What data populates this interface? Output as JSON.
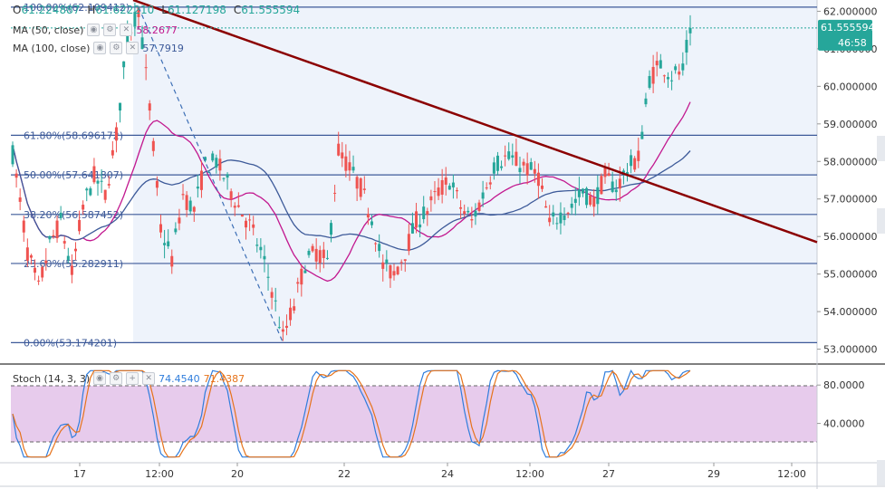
{
  "ohlc": {
    "open_label": "O",
    "open": "61.224887",
    "high_label": "H",
    "high": "61.622210",
    "low_label": "L",
    "low": "61.127198",
    "close_label": "C",
    "close": "61.555594"
  },
  "indicators": {
    "ma50_label": "MA (50, close)",
    "ma50_value": "58.2677",
    "ma50_color": "#c2188f",
    "ma100_label": "MA (100, close)",
    "ma100_value": "57.7919",
    "ma100_color": "#3d5a99"
  },
  "stoch": {
    "label": "Stoch (14, 3, 3)",
    "k_value": "74.4540",
    "k_color": "#2f7ddc",
    "d_value": "71.4387",
    "d_color": "#e6731b",
    "axis_ticks": [
      80,
      40
    ],
    "axis_tick_labels": [
      "80.0000",
      "40.0000"
    ],
    "band_upper": 80,
    "band_lower": 20,
    "ylim": [
      0,
      100
    ]
  },
  "price_badge": {
    "value": "61.555594",
    "countdown": "46:58",
    "color": "#26a69a"
  },
  "colors": {
    "up": "#26a69a",
    "down": "#ef5350",
    "trendline": "#8b0000",
    "fib": "#3d5a99",
    "stoch_band": "#e1bee7"
  },
  "chart_data": {
    "type": "candlestick",
    "ylim": [
      52.7,
      62.3
    ],
    "y_ticks": [
      62,
      61,
      60,
      59,
      58,
      57,
      56,
      55,
      54,
      53
    ],
    "y_tick_labels": [
      "62.000000",
      "61.000000",
      "60.000000",
      "59.000000",
      "58.000000",
      "57.000000",
      "56.000000",
      "55.000000",
      "54.000000",
      "53.000000"
    ],
    "x_tick_labels": [
      "17",
      "12:00",
      "20",
      "22",
      "24",
      "12:00",
      "27",
      "29",
      "12:00"
    ],
    "fibonacci": [
      {
        "label": "100.00%(62.109412)",
        "level": 62.109412
      },
      {
        "label": "61.80%(58.696172)",
        "level": 58.696172
      },
      {
        "label": "50.00%(57.641807)",
        "level": 57.641807
      },
      {
        "label": "38.20%(56.587452)",
        "level": 56.587452
      },
      {
        "label": "23.60%(55.282911)",
        "level": 55.282911
      },
      {
        "label": "0.00%(53.174201)",
        "level": 53.174201
      }
    ],
    "trendline_start": 62.3,
    "trendline_end": 55.85,
    "current_price": 61.555594,
    "price_path": [
      [
        0,
        58.2
      ],
      [
        4,
        55.6
      ],
      [
        7,
        54.6
      ],
      [
        10,
        55.8
      ],
      [
        13,
        56.4
      ],
      [
        16,
        55.0
      ],
      [
        19,
        56.8
      ],
      [
        22,
        57.6
      ],
      [
        25,
        57.1
      ],
      [
        28,
        58.7
      ],
      [
        31,
        61.3
      ],
      [
        34,
        62.1
      ],
      [
        37,
        59.4
      ],
      [
        40,
        56.2
      ],
      [
        43,
        55.4
      ],
      [
        46,
        57.1
      ],
      [
        49,
        56.7
      ],
      [
        52,
        57.9
      ],
      [
        55,
        58.0
      ],
      [
        58,
        57.4
      ],
      [
        61,
        56.8
      ],
      [
        64,
        56.3
      ],
      [
        67,
        55.6
      ],
      [
        70,
        54.6
      ],
      [
        73,
        53.3
      ],
      [
        76,
        54.2
      ],
      [
        79,
        55.3
      ],
      [
        82,
        55.6
      ],
      [
        85,
        55.3
      ],
      [
        88,
        58.3
      ],
      [
        91,
        57.8
      ],
      [
        94,
        57.3
      ],
      [
        97,
        56.5
      ],
      [
        100,
        55.2
      ],
      [
        103,
        55.0
      ],
      [
        106,
        55.6
      ],
      [
        109,
        56.4
      ],
      [
        112,
        56.7
      ],
      [
        115,
        57.2
      ],
      [
        118,
        57.5
      ],
      [
        121,
        56.8
      ],
      [
        124,
        56.4
      ],
      [
        127,
        57.1
      ],
      [
        130,
        57.9
      ],
      [
        133,
        58.1
      ],
      [
        136,
        58.0
      ],
      [
        139,
        57.8
      ],
      [
        142,
        57.6
      ],
      [
        145,
        56.3
      ],
      [
        148,
        56.6
      ],
      [
        151,
        56.8
      ],
      [
        154,
        57.2
      ],
      [
        157,
        56.9
      ],
      [
        160,
        57.6
      ],
      [
        163,
        57.3
      ],
      [
        166,
        57.8
      ],
      [
        169,
        58.1
      ],
      [
        172,
        60.2
      ],
      [
        175,
        60.6
      ],
      [
        178,
        60.3
      ],
      [
        181,
        60.4
      ],
      [
        183,
        61.555594
      ]
    ]
  }
}
